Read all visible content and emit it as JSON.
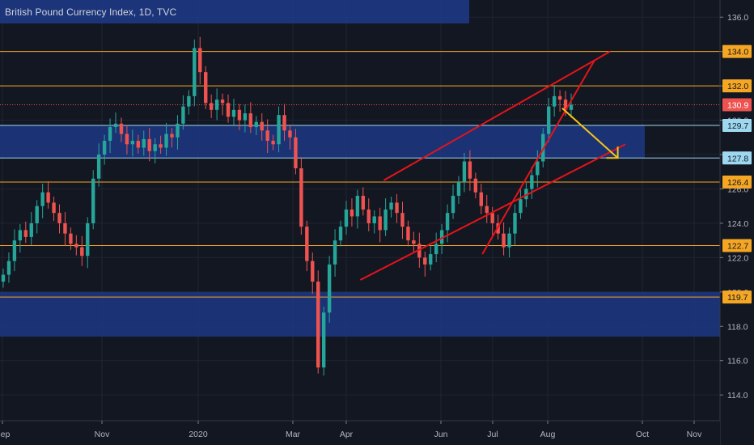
{
  "header": {
    "title": "British Pound Currency Index, 1D, TVC"
  },
  "colors": {
    "background": "#131722",
    "grid": "#1f2433",
    "up": "#26a69a",
    "down": "#ef5350",
    "zone": "#1e3a8a",
    "level": "#f5a623",
    "level_blue": "#9ed8f0",
    "trend": "#e5141a",
    "arrow": "#f5c518",
    "current": "#ef5350",
    "axis_text": "#b2b5be"
  },
  "chart_data": {
    "type": "candlestick",
    "title": "British Pound Currency Index, 1D, TVC",
    "y_ticks": [
      "136.0",
      "134.0",
      "132.0",
      "130.0",
      "128.0",
      "126.0",
      "124.0",
      "122.0",
      "120.0",
      "118.0",
      "116.0",
      "114.0"
    ],
    "x_ticks": [
      "Sep",
      "Nov",
      "2020",
      "Mar",
      "Apr",
      "Jun",
      "Jul",
      "Aug",
      "Oct",
      "Nov"
    ],
    "ylim": [
      112.5,
      137.0
    ],
    "levels": [
      {
        "label": "134.0",
        "value": 134.0,
        "color": "level"
      },
      {
        "label": "132.0",
        "value": 132.0,
        "color": "level"
      },
      {
        "label": "130.9",
        "value": 130.9,
        "color": "current"
      },
      {
        "label": "129.7",
        "value": 129.7,
        "color": "level_blue"
      },
      {
        "label": "127.8",
        "value": 127.8,
        "color": "level_blue"
      },
      {
        "label": "126.4",
        "value": 126.4,
        "color": "level"
      },
      {
        "label": "122.7",
        "value": 122.7,
        "color": "level"
      },
      {
        "label": "119.7",
        "value": 119.7,
        "color": "level"
      }
    ],
    "zones": [
      {
        "from": 127.8,
        "to": 129.7
      },
      {
        "from": 117.4,
        "to": 120.0
      }
    ],
    "series": [
      {
        "name": "close",
        "values": [
          121.0,
          121.8,
          123.0,
          123.6,
          123.2,
          124.0,
          125.0,
          125.8,
          125.2,
          124.6,
          124.0,
          123.4,
          122.8,
          122.6,
          122.1,
          124.0,
          126.6,
          128.0,
          128.8,
          129.6,
          129.8,
          129.2,
          128.6,
          128.8,
          128.4,
          128.9,
          128.2,
          128.6,
          128.4,
          129.2,
          129.0,
          129.8,
          130.8,
          131.4,
          134.2,
          132.8,
          131.0,
          130.6,
          131.2,
          131.0,
          130.2,
          130.6,
          130.0,
          130.4,
          129.6,
          129.9,
          129.4,
          128.8,
          128.6,
          130.3,
          129.4,
          129.0,
          127.2,
          123.8,
          121.8,
          120.6,
          115.6,
          118.8,
          121.6,
          123.0,
          123.8,
          124.8,
          124.4,
          125.6,
          124.8,
          124.0,
          124.4,
          123.6,
          124.8,
          125.2,
          124.6,
          123.8,
          123.0,
          122.8,
          122.0,
          121.6,
          122.2,
          122.8,
          123.6,
          124.6,
          125.6,
          126.4,
          127.6,
          126.6,
          125.8,
          125.0,
          124.6,
          124.0,
          123.4,
          122.6,
          123.4,
          124.6,
          125.4,
          126.0,
          126.8,
          127.6,
          129.2,
          130.8,
          131.4,
          131.2,
          130.6,
          130.9
        ]
      }
    ],
    "trend_lines": [
      {
        "from": [
          "Apr 10",
          120.7
        ],
        "to": [
          "Sep 20",
          128.6
        ]
      },
      {
        "from": [
          "Apr 25",
          126.5
        ],
        "to": [
          "Sep 10",
          134.0
        ]
      },
      {
        "from": [
          "Jun 25",
          122.2
        ],
        "to": [
          "Aug 30",
          133.5
        ]
      }
    ],
    "arrow": {
      "from": [
        "Aug 10",
        130.7
      ],
      "to": [
        "Sep 15",
        127.8
      ]
    }
  }
}
